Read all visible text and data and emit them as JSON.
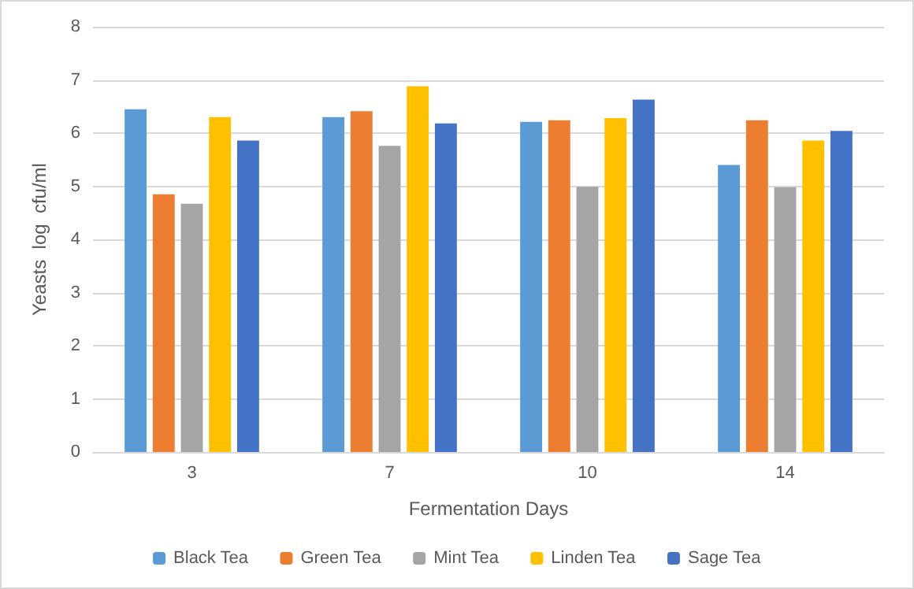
{
  "chart_data": {
    "type": "bar",
    "xlabel": "Fermentation Days",
    "ylabel": "Yeasts  log  cfu/ml",
    "categories": [
      "3",
      "7",
      "10",
      "14"
    ],
    "series": [
      {
        "name": "Black Tea",
        "color": "#5b9bd5",
        "values": [
          6.45,
          6.3,
          6.21,
          5.4
        ]
      },
      {
        "name": "Green Tea",
        "color": "#ed7d31",
        "values": [
          4.85,
          6.41,
          6.24,
          6.24
        ]
      },
      {
        "name": "Mint Tea",
        "color": "#a5a5a5",
        "values": [
          4.67,
          5.76,
          4.99,
          4.98
        ]
      },
      {
        "name": "Linden Tea",
        "color": "#ffc000",
        "values": [
          6.3,
          6.88,
          6.28,
          5.86
        ]
      },
      {
        "name": "Sage Tea",
        "color": "#4472c4",
        "values": [
          5.86,
          6.18,
          6.63,
          6.04
        ]
      }
    ],
    "ylim": [
      0,
      8
    ],
    "yticks": [
      0,
      1,
      2,
      3,
      4,
      5,
      6,
      7,
      8
    ],
    "grid": "y",
    "legend": "bottom"
  }
}
